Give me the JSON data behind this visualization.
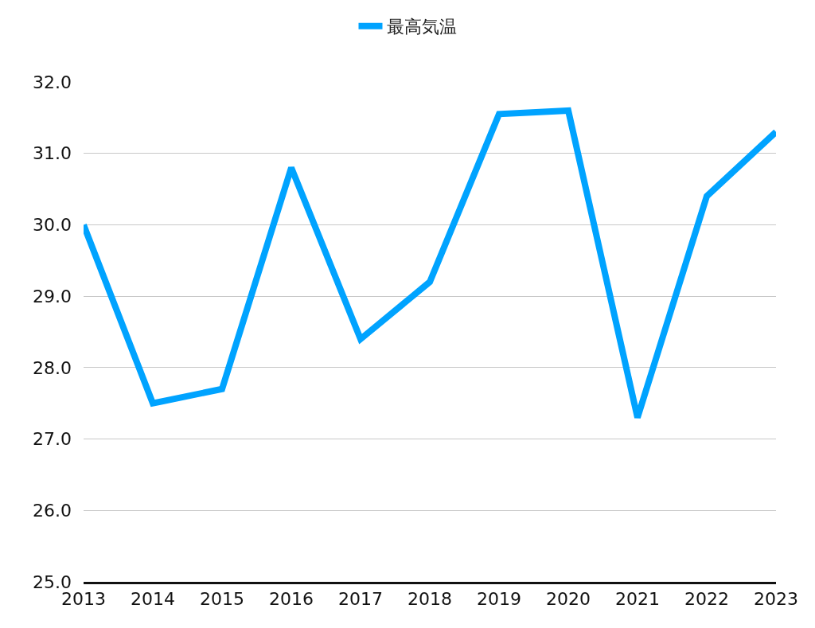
{
  "chart_data": {
    "type": "line",
    "categories": [
      "2013",
      "2014",
      "2015",
      "2016",
      "2017",
      "2018",
      "2019",
      "2020",
      "2021",
      "2022",
      "2023"
    ],
    "series": [
      {
        "name": "最高気温",
        "color": "#00a3ff",
        "values": [
          30.0,
          27.5,
          27.7,
          30.8,
          28.4,
          29.2,
          31.55,
          31.6,
          27.3,
          30.4,
          31.3
        ]
      }
    ],
    "ylim": [
      25,
      32
    ],
    "yticks": [
      {
        "value": 25,
        "label": "25.0"
      },
      {
        "value": 26,
        "label": "26.0"
      },
      {
        "value": 27,
        "label": "27.0"
      },
      {
        "value": 28,
        "label": "28.0"
      },
      {
        "value": 29,
        "label": "29.0"
      },
      {
        "value": 30,
        "label": "30.0"
      },
      {
        "value": 31,
        "label": "31.0"
      },
      {
        "value": 32,
        "label": "32.0"
      }
    ],
    "grid": "y",
    "legend": "top",
    "marker": "none",
    "line_style": "solid"
  }
}
